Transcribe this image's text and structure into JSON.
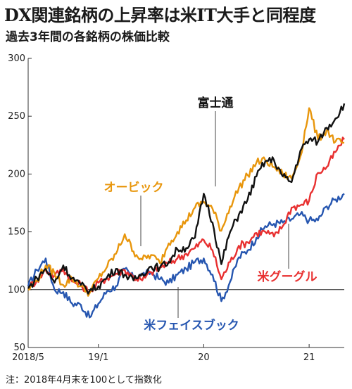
{
  "title": "DX関連銘柄の上昇率は米IT大手と同程度",
  "subtitle": "過去3年間の各銘柄の株価比較",
  "note": "注：2018年4月末を100として指数化",
  "chart_data": {
    "type": "line",
    "title": "",
    "xlabel": "",
    "ylabel": "",
    "x_ticks": [
      "2018/5",
      "19/1",
      "20",
      "21"
    ],
    "y_ticks": [
      50,
      100,
      150,
      200,
      250,
      300
    ],
    "ylim": [
      50,
      300
    ],
    "xlim": [
      "2018-05",
      "2021-05"
    ],
    "baseline": 100,
    "grid": false,
    "series": [
      {
        "name": "富士通",
        "color": "#111111",
        "points": [
          [
            "2018-05",
            101
          ],
          [
            "2018-06",
            110
          ],
          [
            "2018-07",
            118
          ],
          [
            "2018-08",
            106
          ],
          [
            "2018-09",
            121
          ],
          [
            "2018-10",
            110
          ],
          [
            "2018-11",
            104
          ],
          [
            "2018-12",
            99
          ],
          [
            "2019-01",
            103
          ],
          [
            "2019-02",
            111
          ],
          [
            "2019-03",
            118
          ],
          [
            "2019-04",
            113
          ],
          [
            "2019-05",
            108
          ],
          [
            "2019-06",
            114
          ],
          [
            "2019-07",
            120
          ],
          [
            "2019-08",
            119
          ],
          [
            "2019-09",
            124
          ],
          [
            "2019-10",
            135
          ],
          [
            "2019-11",
            136
          ],
          [
            "2019-12",
            145
          ],
          [
            "2020-01",
            183
          ],
          [
            "2020-02",
            158
          ],
          [
            "2020-03",
            122
          ],
          [
            "2020-04",
            150
          ],
          [
            "2020-05",
            165
          ],
          [
            "2020-06",
            178
          ],
          [
            "2020-07",
            198
          ],
          [
            "2020-08",
            211
          ],
          [
            "2020-09",
            212
          ],
          [
            "2020-10",
            198
          ],
          [
            "2020-11",
            193
          ],
          [
            "2020-12",
            220
          ],
          [
            "2021-01",
            230
          ],
          [
            "2021-02",
            228
          ],
          [
            "2021-03",
            240
          ],
          [
            "2021-04",
            248
          ],
          [
            "2021-05",
            261
          ]
        ]
      },
      {
        "name": "オービック",
        "color": "#e8960c",
        "points": [
          [
            "2018-05",
            100
          ],
          [
            "2018-06",
            108
          ],
          [
            "2018-07",
            121
          ],
          [
            "2018-08",
            114
          ],
          [
            "2018-09",
            104
          ],
          [
            "2018-10",
            110
          ],
          [
            "2018-11",
            103
          ],
          [
            "2018-12",
            97
          ],
          [
            "2019-01",
            110
          ],
          [
            "2019-02",
            120
          ],
          [
            "2019-03",
            131
          ],
          [
            "2019-04",
            148
          ],
          [
            "2019-05",
            133
          ],
          [
            "2019-06",
            126
          ],
          [
            "2019-07",
            130
          ],
          [
            "2019-08",
            123
          ],
          [
            "2019-09",
            140
          ],
          [
            "2019-10",
            150
          ],
          [
            "2019-11",
            160
          ],
          [
            "2019-12",
            171
          ],
          [
            "2020-01",
            176
          ],
          [
            "2020-02",
            170
          ],
          [
            "2020-03",
            151
          ],
          [
            "2020-04",
            172
          ],
          [
            "2020-05",
            188
          ],
          [
            "2020-06",
            199
          ],
          [
            "2020-07",
            210
          ],
          [
            "2020-08",
            212
          ],
          [
            "2020-09",
            206
          ],
          [
            "2020-10",
            200
          ],
          [
            "2020-11",
            196
          ],
          [
            "2020-12",
            215
          ],
          [
            "2021-01",
            257
          ],
          [
            "2021-02",
            230
          ],
          [
            "2021-03",
            238
          ],
          [
            "2021-04",
            228
          ],
          [
            "2021-05",
            227
          ]
        ]
      },
      {
        "name": "米グーグル",
        "color": "#e83030",
        "points": [
          [
            "2018-05",
            102
          ],
          [
            "2018-06",
            108
          ],
          [
            "2018-07",
            117
          ],
          [
            "2018-08",
            112
          ],
          [
            "2018-09",
            118
          ],
          [
            "2018-10",
            107
          ],
          [
            "2018-11",
            104
          ],
          [
            "2018-12",
            98
          ],
          [
            "2019-01",
            106
          ],
          [
            "2019-02",
            110
          ],
          [
            "2019-03",
            114
          ],
          [
            "2019-04",
            117
          ],
          [
            "2019-05",
            111
          ],
          [
            "2019-06",
            108
          ],
          [
            "2019-07",
            115
          ],
          [
            "2019-08",
            119
          ],
          [
            "2019-09",
            123
          ],
          [
            "2019-10",
            127
          ],
          [
            "2019-11",
            131
          ],
          [
            "2019-12",
            136
          ],
          [
            "2020-01",
            143
          ],
          [
            "2020-02",
            134
          ],
          [
            "2020-03",
            109
          ],
          [
            "2020-04",
            124
          ],
          [
            "2020-05",
            138
          ],
          [
            "2020-06",
            141
          ],
          [
            "2020-07",
            149
          ],
          [
            "2020-08",
            150
          ],
          [
            "2020-09",
            146
          ],
          [
            "2020-10",
            155
          ],
          [
            "2020-11",
            171
          ],
          [
            "2020-12",
            173
          ],
          [
            "2021-01",
            177
          ],
          [
            "2021-02",
            201
          ],
          [
            "2021-03",
            206
          ],
          [
            "2021-04",
            219
          ],
          [
            "2021-05",
            230
          ]
        ]
      },
      {
        "name": "米フェイスブック",
        "color": "#2656b0",
        "points": [
          [
            "2018-05",
            103
          ],
          [
            "2018-06",
            117
          ],
          [
            "2018-07",
            127
          ],
          [
            "2018-08",
            100
          ],
          [
            "2018-09",
            98
          ],
          [
            "2018-10",
            88
          ],
          [
            "2018-11",
            87
          ],
          [
            "2018-12",
            76
          ],
          [
            "2019-01",
            88
          ],
          [
            "2019-02",
            99
          ],
          [
            "2019-03",
            103
          ],
          [
            "2019-04",
            118
          ],
          [
            "2019-05",
            110
          ],
          [
            "2019-06",
            113
          ],
          [
            "2019-07",
            115
          ],
          [
            "2019-08",
            109
          ],
          [
            "2019-09",
            106
          ],
          [
            "2019-10",
            113
          ],
          [
            "2019-11",
            118
          ],
          [
            "2019-12",
            124
          ],
          [
            "2020-01",
            127
          ],
          [
            "2020-02",
            113
          ],
          [
            "2020-03",
            90
          ],
          [
            "2020-04",
            107
          ],
          [
            "2020-05",
            128
          ],
          [
            "2020-06",
            134
          ],
          [
            "2020-07",
            145
          ],
          [
            "2020-08",
            155
          ],
          [
            "2020-09",
            157
          ],
          [
            "2020-10",
            158
          ],
          [
            "2020-11",
            161
          ],
          [
            "2020-12",
            165
          ],
          [
            "2021-01",
            160
          ],
          [
            "2021-02",
            160
          ],
          [
            "2021-03",
            172
          ],
          [
            "2021-04",
            178
          ],
          [
            "2021-05",
            183
          ]
        ]
      }
    ],
    "labels": [
      {
        "series": "富士通",
        "text": "富士通",
        "color": "#111111"
      },
      {
        "series": "オービック",
        "text": "オービック",
        "color": "#e8960c"
      },
      {
        "series": "米グーグル",
        "text": "米グーグル",
        "color": "#e83030"
      },
      {
        "series": "米フェイスブック",
        "text": "米フェイスブック",
        "color": "#2656b0"
      }
    ]
  }
}
